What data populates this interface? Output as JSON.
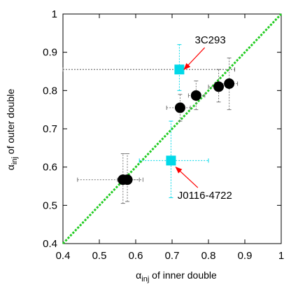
{
  "chart_data": {
    "type": "scatter",
    "xlabel_main": "α",
    "xlabel_sub": "inj",
    "xlabel_rest": " of inner double",
    "ylabel_main": "α",
    "ylabel_sub": "inj",
    "ylabel_rest": " of outer double",
    "xlim": [
      0.4,
      1.0
    ],
    "ylim": [
      0.4,
      1.0
    ],
    "xticks": [
      "0.4",
      "0.5",
      "0.6",
      "0.7",
      "0.8",
      "0.9",
      "1"
    ],
    "yticks": [
      "0.4",
      "0.5",
      "0.6",
      "0.7",
      "0.8",
      "0.9",
      "1"
    ],
    "grid": false,
    "legend": "none",
    "reference_line": {
      "x": [
        0.4,
        1.0
      ],
      "y": [
        0.4,
        1.0
      ],
      "color": "#22cc22",
      "style": "dotted"
    },
    "colors": {
      "circles": "#000000",
      "squares": "#00d8e8",
      "errorbars_circles": "#777777",
      "arrows": "#ff0000"
    },
    "series": [
      {
        "marker": "circle",
        "points": [
          {
            "x": 0.565,
            "y": 0.567,
            "xerr": [
              0.44,
              0.61
            ],
            "yerr": [
              0.505,
              0.635
            ]
          },
          {
            "x": 0.577,
            "y": 0.567,
            "xerr": [
              0.55,
              0.62
            ],
            "yerr": [
              0.51,
              0.635
            ]
          },
          {
            "x": 0.722,
            "y": 0.755,
            "xerr": [
              0.685,
              0.75
            ],
            "yerr": [
              0.72,
              0.79
            ]
          },
          {
            "x": 0.766,
            "y": 0.787,
            "xerr": [
              0.745,
              0.79
            ],
            "yerr": [
              0.75,
              0.825
            ]
          },
          {
            "x": 0.828,
            "y": 0.81,
            "xerr": [
              0.8,
              0.855
            ],
            "yerr": [
              0.77,
              0.855
            ]
          },
          {
            "x": 0.857,
            "y": 0.818,
            "xerr": [
              0.83,
              0.88
            ],
            "yerr": [
              0.75,
              0.885
            ]
          }
        ]
      },
      {
        "marker": "square",
        "points": [
          {
            "name": "3C293",
            "x": 0.72,
            "y": 0.855,
            "xerr": [
              0.4,
              0.872
            ],
            "yerr": [
              0.8,
              0.92
            ],
            "xerr_color": "#555555"
          },
          {
            "name": "J0116-4722",
            "x": 0.697,
            "y": 0.617,
            "xerr": [
              0.61,
              0.8
            ],
            "yerr": [
              0.52,
              0.72
            ],
            "xerr_color": "#00d8e8"
          }
        ]
      }
    ],
    "annotations": [
      {
        "text": "3C293",
        "x": 0.805,
        "y": 0.923,
        "point_to": [
          0.733,
          0.855
        ]
      },
      {
        "text": "J0116-4722",
        "x": 0.79,
        "y": 0.517,
        "point_to": [
          0.71,
          0.6
        ]
      }
    ]
  }
}
